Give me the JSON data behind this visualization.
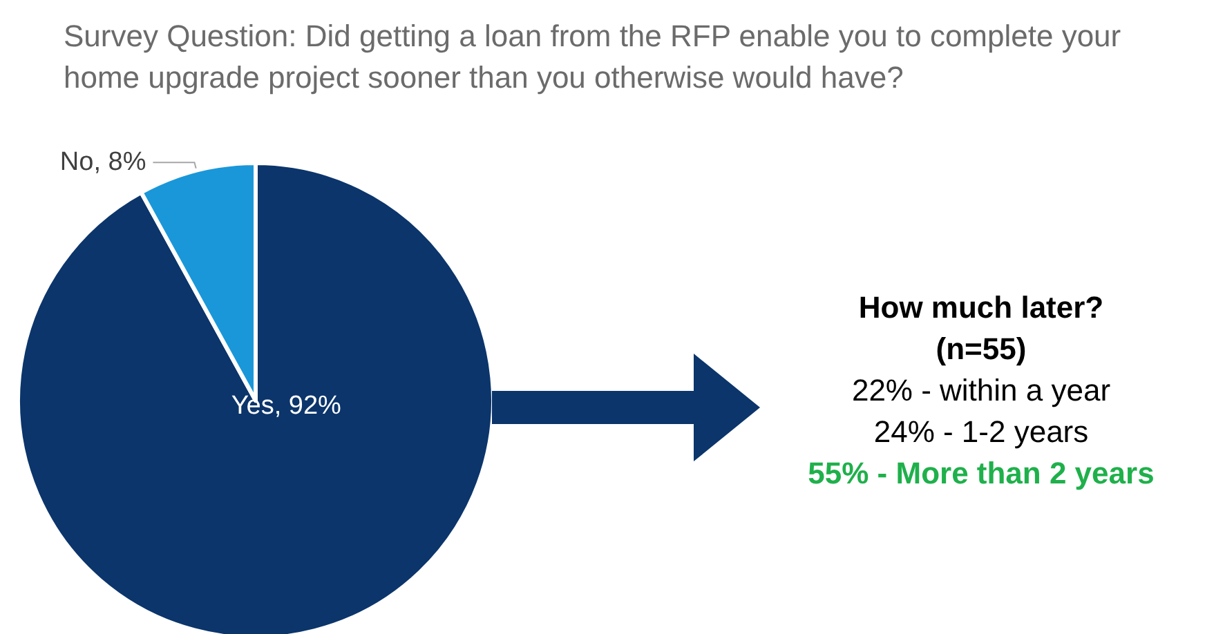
{
  "chart_data": [
    {
      "type": "pie",
      "title": "Survey Question: Did getting a loan from the RFP enable you to complete your home upgrade project sooner than you otherwise would have?",
      "categories": [
        "Yes",
        "No"
      ],
      "values": [
        92,
        8
      ],
      "colors": [
        "#0b356b",
        "#1a97d9"
      ],
      "value_labels": [
        "92%",
        "8%"
      ],
      "legend": false
    },
    {
      "type": "other",
      "title": "How much later?",
      "subtitle": "(n=55)",
      "annotations": [
        "22% - within a year",
        "24% - 1-2 years",
        "55% - More than 2 years"
      ]
    }
  ]
}
